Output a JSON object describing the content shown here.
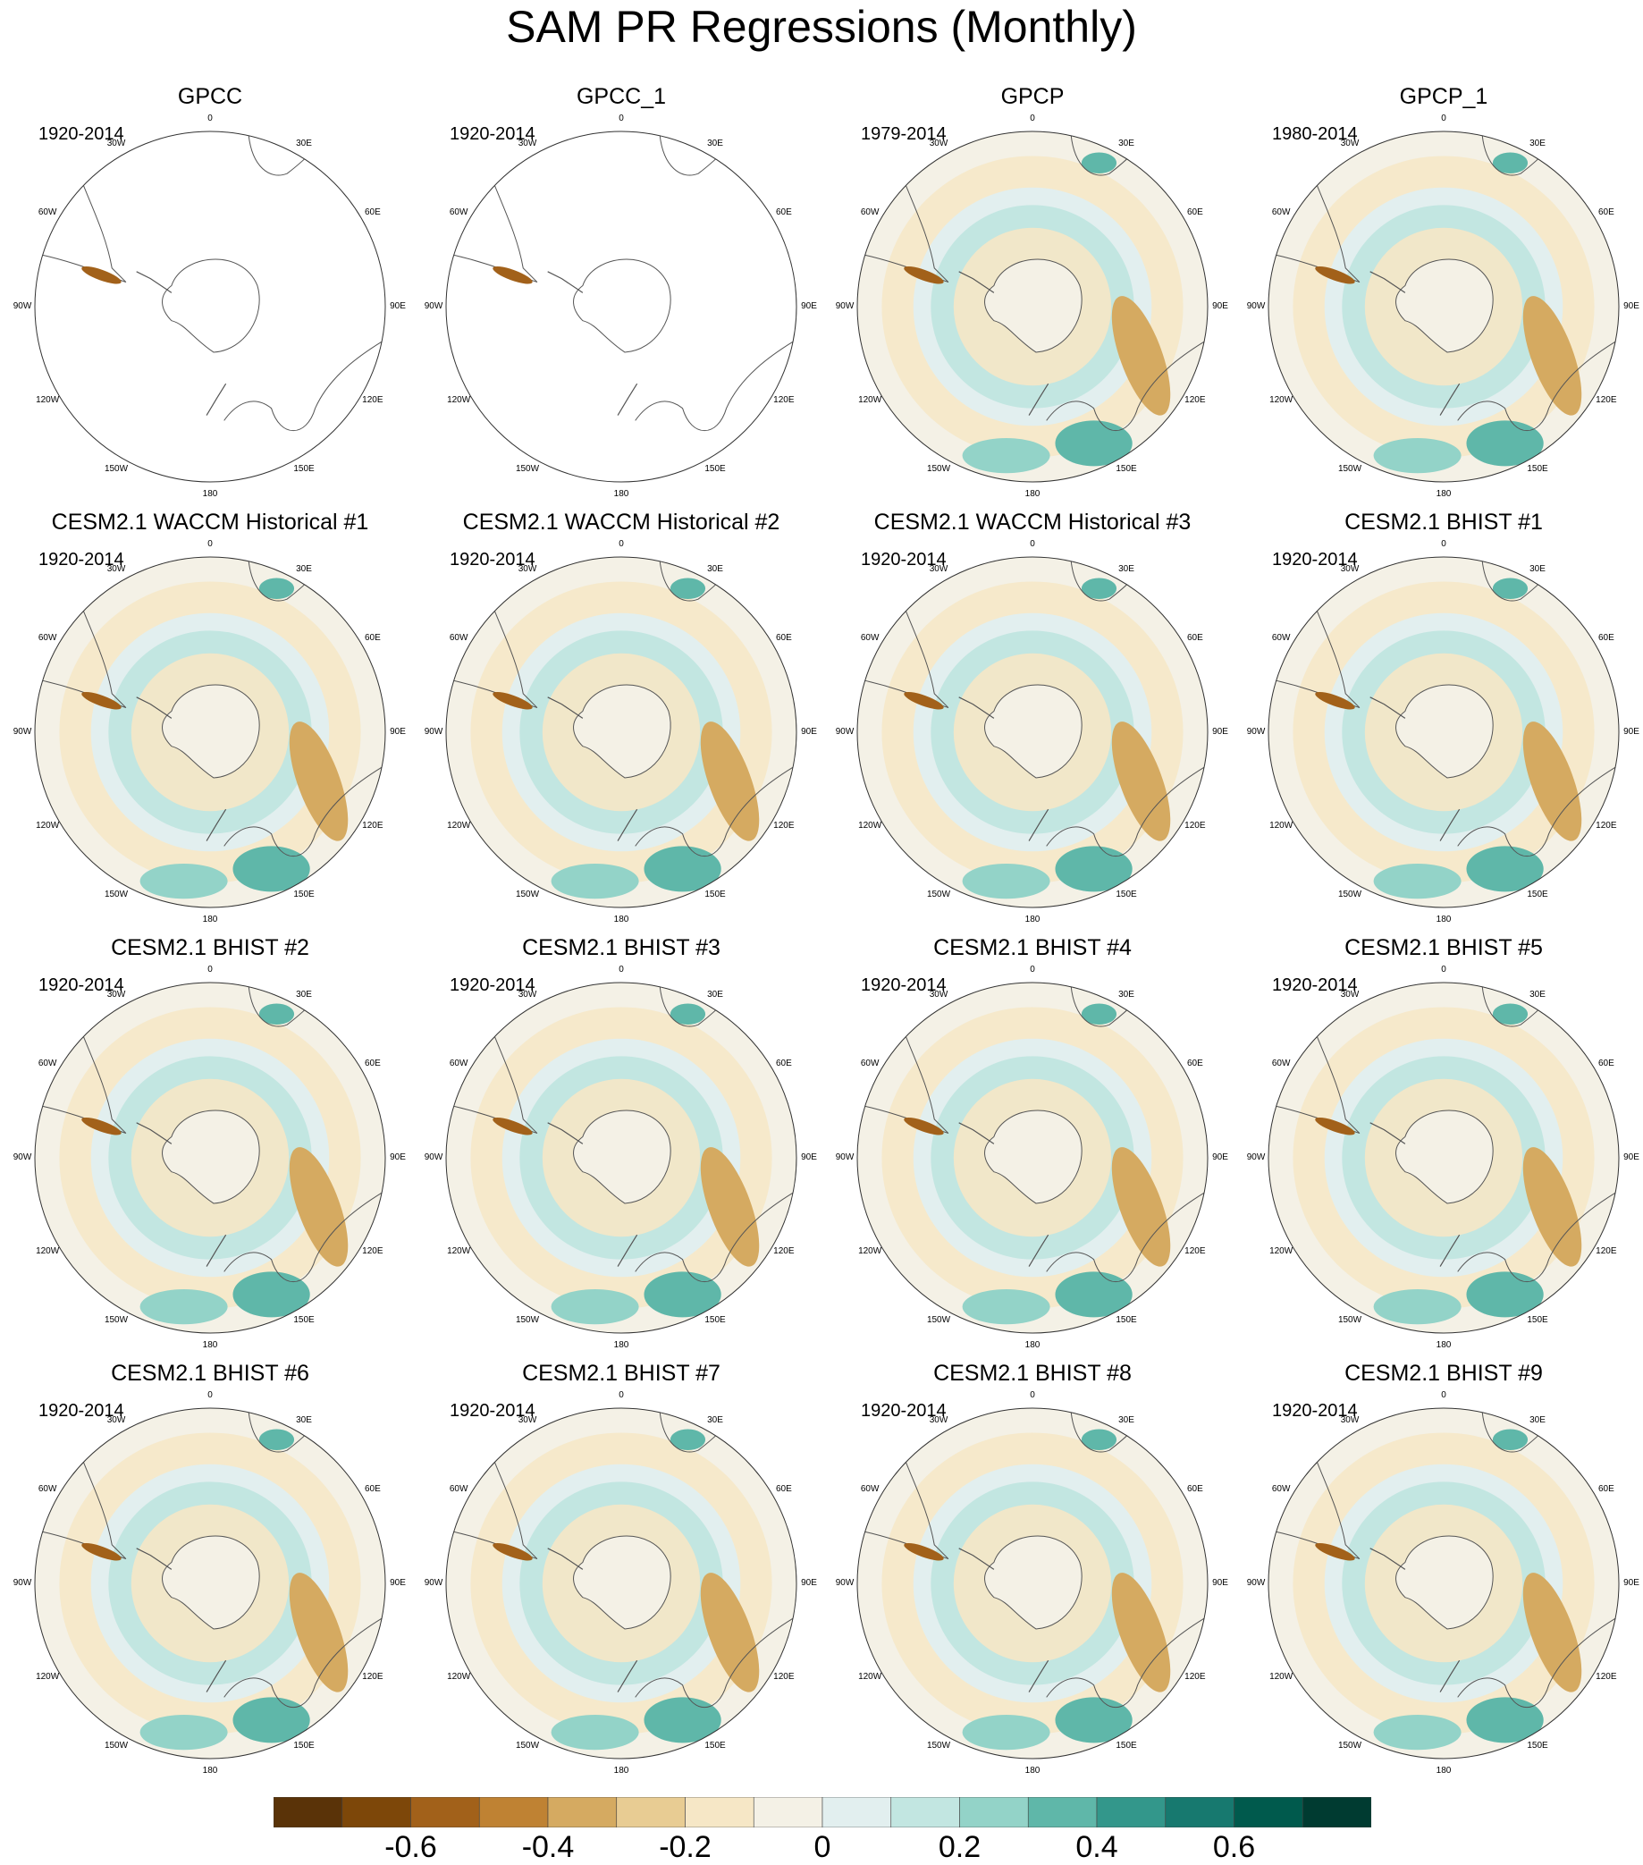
{
  "title": "SAM PR Regressions (Monthly)",
  "chart_data": {
    "type": "heatmap",
    "projection": "south polar stereographic",
    "longitude_labels": [
      "0",
      "30E",
      "60E",
      "90E",
      "120E",
      "150E",
      "180",
      "150W",
      "120W",
      "90W",
      "60W",
      "30W"
    ],
    "panels": [
      {
        "title": "GPCC",
        "period": "1920-2014",
        "coverage": "land-only"
      },
      {
        "title": "GPCC_1",
        "period": "1920-2014",
        "coverage": "land-only"
      },
      {
        "title": "GPCP",
        "period": "1979-2014",
        "coverage": "global"
      },
      {
        "title": "GPCP_1",
        "period": "1980-2014",
        "coverage": "global"
      },
      {
        "title": "CESM2.1 WACCM Historical #1",
        "period": "1920-2014",
        "coverage": "global"
      },
      {
        "title": "CESM2.1 WACCM Historical #2",
        "period": "1920-2014",
        "coverage": "global"
      },
      {
        "title": "CESM2.1 WACCM Historical #3",
        "period": "1920-2014",
        "coverage": "global"
      },
      {
        "title": "CESM2.1 BHIST #1",
        "period": "1920-2014",
        "coverage": "global"
      },
      {
        "title": "CESM2.1 BHIST #2",
        "period": "1920-2014",
        "coverage": "global"
      },
      {
        "title": "CESM2.1 BHIST #3",
        "period": "1920-2014",
        "coverage": "global"
      },
      {
        "title": "CESM2.1 BHIST #4",
        "period": "1920-2014",
        "coverage": "global"
      },
      {
        "title": "CESM2.1 BHIST #5",
        "period": "1920-2014",
        "coverage": "global"
      },
      {
        "title": "CESM2.1 BHIST #6",
        "period": "1920-2014",
        "coverage": "global"
      },
      {
        "title": "CESM2.1 BHIST #7",
        "period": "1920-2014",
        "coverage": "global"
      },
      {
        "title": "CESM2.1 BHIST #8",
        "period": "1920-2014",
        "coverage": "global"
      },
      {
        "title": "CESM2.1 BHIST #9",
        "period": "1920-2014",
        "coverage": "global"
      }
    ],
    "colorbar": {
      "colors": [
        "#5a3308",
        "#7d4709",
        "#a2611a",
        "#bf8233",
        "#d5aa61",
        "#e8cc93",
        "#f6e7c6",
        "#f4f1e6",
        "#e2efef",
        "#c2e6e1",
        "#93d3c8",
        "#5fb7a9",
        "#33978b",
        "#17796f",
        "#005a4d",
        "#003b31"
      ],
      "tick_labels": [
        "-0.6",
        "-0.4",
        "-0.2",
        "0",
        "0.2",
        "0.4",
        "0.6"
      ],
      "tick_values": [
        -0.6,
        -0.4,
        -0.2,
        0,
        0.2,
        0.4,
        0.6
      ],
      "range": [
        -0.8,
        0.8
      ]
    }
  }
}
